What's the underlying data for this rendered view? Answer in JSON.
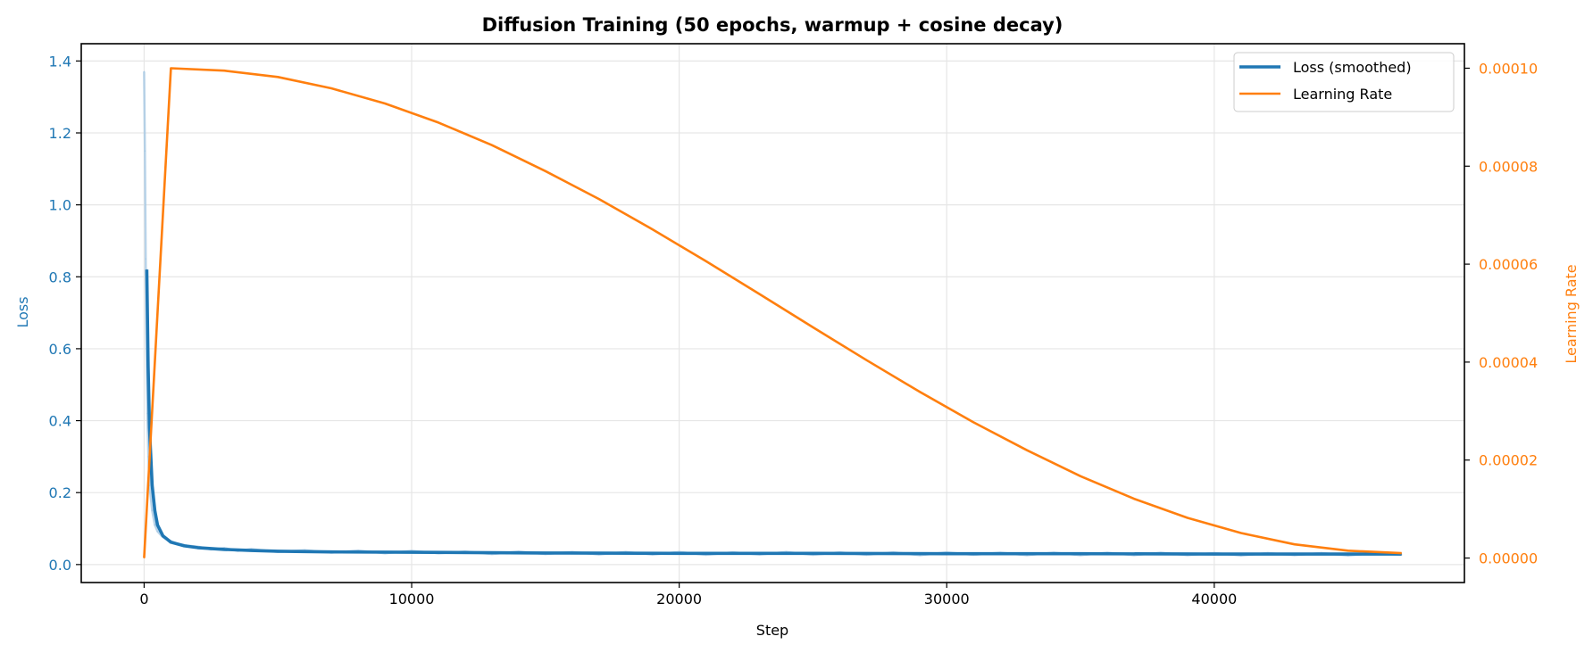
{
  "chart_data": {
    "type": "line",
    "title": "Diffusion Training (50 epochs, warmup + cosine decay)",
    "xlabel": "Step",
    "ylabel_left": "Loss",
    "ylabel_right": "Learning Rate",
    "xlim": [
      -2350,
      49350
    ],
    "ylim_left": [
      -0.05,
      1.448
    ],
    "ylim_right": [
      -5e-06,
      0.000105
    ],
    "x_ticks": [
      0,
      10000,
      20000,
      30000,
      40000
    ],
    "x_tick_labels": [
      "0",
      "10000",
      "20000",
      "30000",
      "40000"
    ],
    "y_left_ticks": [
      0.0,
      0.2,
      0.4,
      0.6,
      0.8,
      1.0,
      1.2,
      1.4
    ],
    "y_left_tick_labels": [
      "0.0",
      "0.2",
      "0.4",
      "0.6",
      "0.8",
      "1.0",
      "1.2",
      "1.4"
    ],
    "y_right_ticks": [
      0,
      2e-05,
      4e-05,
      6e-05,
      8e-05,
      0.0001
    ],
    "y_right_tick_labels": [
      "0.00000",
      "0.00002",
      "0.00004",
      "0.00006",
      "0.00008",
      "0.00010"
    ],
    "grid": true,
    "legend_position": "top-right",
    "colors": {
      "loss": "#1f77b4",
      "loss_raw": "#a6c8e4",
      "lr": "#ff7f0e",
      "grid": "#e6e6e6"
    },
    "series": [
      {
        "name": "Loss (smoothed)",
        "axis": "left",
        "points": [
          [
            100,
            0.82
          ],
          [
            150,
            0.55
          ],
          [
            200,
            0.38
          ],
          [
            300,
            0.22
          ],
          [
            400,
            0.15
          ],
          [
            500,
            0.11
          ],
          [
            700,
            0.08
          ],
          [
            1000,
            0.062
          ],
          [
            1500,
            0.052
          ],
          [
            2000,
            0.047
          ],
          [
            3000,
            0.042
          ],
          [
            4000,
            0.039
          ],
          [
            5000,
            0.037
          ],
          [
            7000,
            0.035
          ],
          [
            10000,
            0.034
          ],
          [
            15000,
            0.032
          ],
          [
            20000,
            0.031
          ],
          [
            25000,
            0.031
          ],
          [
            30000,
            0.03
          ],
          [
            35000,
            0.03
          ],
          [
            40000,
            0.029
          ],
          [
            45000,
            0.029
          ],
          [
            47000,
            0.029
          ]
        ]
      },
      {
        "name": "Learning Rate",
        "axis": "right",
        "points": [
          [
            0,
            0
          ],
          [
            1000,
            0.0001
          ],
          [
            3000,
            9.95e-05
          ],
          [
            5000,
            9.82e-05
          ],
          [
            7000,
            9.59e-05
          ],
          [
            9000,
            9.28e-05
          ],
          [
            11000,
            8.89e-05
          ],
          [
            13000,
            8.43e-05
          ],
          [
            15000,
            7.9e-05
          ],
          [
            17000,
            7.33e-05
          ],
          [
            19000,
            6.71e-05
          ],
          [
            21000,
            6.06e-05
          ],
          [
            23000,
            5.39e-05
          ],
          [
            25000,
            4.71e-05
          ],
          [
            27000,
            4.04e-05
          ],
          [
            29000,
            3.39e-05
          ],
          [
            31000,
            2.77e-05
          ],
          [
            33000,
            2.2e-05
          ],
          [
            35000,
            1.67e-05
          ],
          [
            37000,
            1.21e-05
          ],
          [
            39000,
            8.2e-06
          ],
          [
            41000,
            5.1e-06
          ],
          [
            43000,
            2.8e-06
          ],
          [
            45000,
            1.5e-06
          ],
          [
            47000,
            1e-06
          ]
        ]
      }
    ],
    "raw_loss": {
      "axis": "left",
      "points": [
        [
          0,
          1.37
        ],
        [
          30,
          1.15
        ],
        [
          60,
          0.85
        ],
        [
          90,
          0.6
        ],
        [
          120,
          0.42
        ],
        [
          160,
          0.3
        ],
        [
          200,
          0.22
        ],
        [
          300,
          0.15
        ],
        [
          400,
          0.11
        ],
        [
          500,
          0.092
        ],
        [
          700,
          0.076
        ],
        [
          900,
          0.068
        ],
        [
          1100,
          0.062
        ],
        [
          1300,
          0.057
        ],
        [
          1600,
          0.053
        ],
        [
          2000,
          0.05
        ],
        [
          2500,
          0.042
        ],
        [
          3000,
          0.046
        ],
        [
          3500,
          0.038
        ],
        [
          4000,
          0.043
        ],
        [
          5000,
          0.035
        ],
        [
          6000,
          0.04
        ],
        [
          7000,
          0.033
        ],
        [
          8000,
          0.039
        ],
        [
          9000,
          0.031
        ],
        [
          10000,
          0.038
        ],
        [
          11000,
          0.031
        ],
        [
          12000,
          0.036
        ],
        [
          13000,
          0.029
        ],
        [
          14000,
          0.036
        ],
        [
          15000,
          0.029
        ],
        [
          16000,
          0.035
        ],
        [
          17000,
          0.028
        ],
        [
          18000,
          0.035
        ],
        [
          19000,
          0.028
        ],
        [
          20000,
          0.035
        ],
        [
          21000,
          0.027
        ],
        [
          22000,
          0.034
        ],
        [
          23000,
          0.028
        ],
        [
          24000,
          0.035
        ],
        [
          25000,
          0.027
        ],
        [
          26000,
          0.034
        ],
        [
          27000,
          0.027
        ],
        [
          28000,
          0.034
        ],
        [
          29000,
          0.026
        ],
        [
          30000,
          0.034
        ],
        [
          31000,
          0.027
        ],
        [
          32000,
          0.033
        ],
        [
          33000,
          0.026
        ],
        [
          34000,
          0.033
        ],
        [
          35000,
          0.026
        ],
        [
          36000,
          0.033
        ],
        [
          37000,
          0.026
        ],
        [
          38000,
          0.033
        ],
        [
          39000,
          0.026
        ],
        [
          40000,
          0.032
        ],
        [
          41000,
          0.025
        ],
        [
          42000,
          0.032
        ],
        [
          43000,
          0.026
        ],
        [
          44000,
          0.032
        ],
        [
          45000,
          0.025
        ],
        [
          46000,
          0.032
        ],
        [
          47000,
          0.027
        ]
      ]
    }
  }
}
